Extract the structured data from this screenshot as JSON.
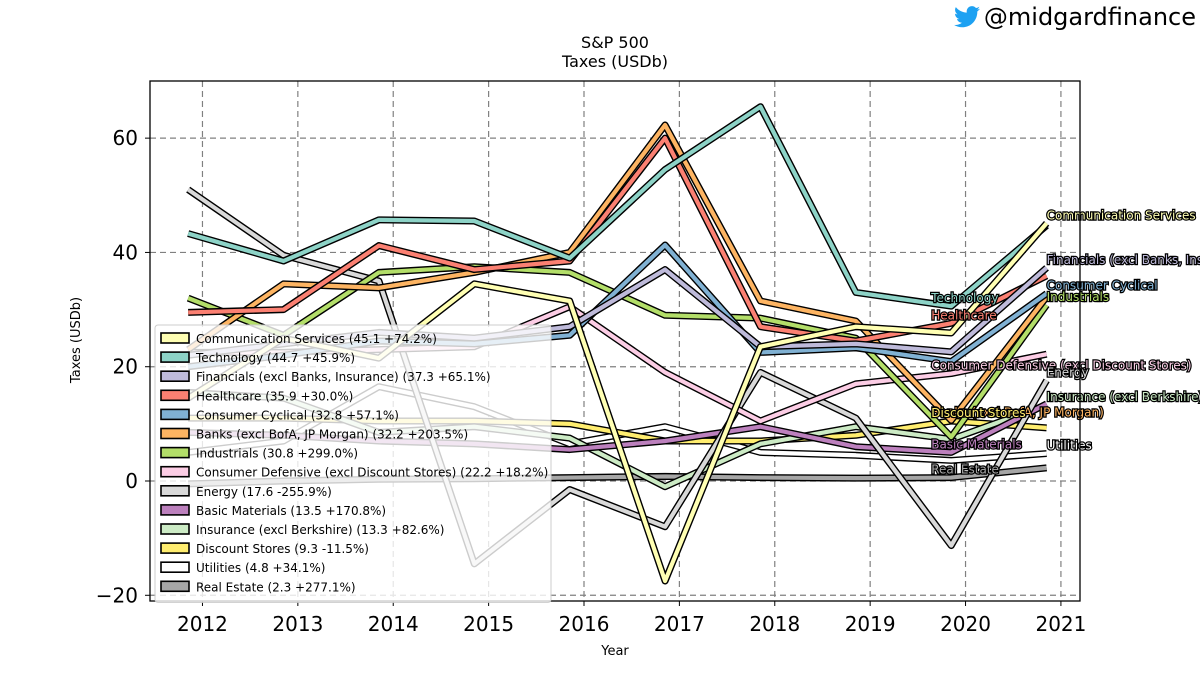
{
  "brand": {
    "handle": "@midgardfinance",
    "icon": "twitter-bird-icon",
    "icon_color": "#1DA1F2"
  },
  "chart_data": {
    "type": "line",
    "title": "S&P 500",
    "subtitle": "Taxes (USDb)",
    "xlabel": "Year",
    "ylabel": "Taxes (USDb)",
    "x": [
      2012,
      2013,
      2014,
      2015,
      2016,
      2017,
      2018,
      2019,
      2020,
      2021
    ],
    "xticks": [
      "2012",
      "2013",
      "2014",
      "2015",
      "2016",
      "2017",
      "2018",
      "2019",
      "2020",
      "2021"
    ],
    "ylim": [
      -21,
      70
    ],
    "yticks": [
      "−20",
      "0",
      "20",
      "40",
      "60"
    ],
    "ytick_values": [
      -20,
      0,
      20,
      40,
      60
    ],
    "grid": true,
    "legend_location": "lower-left",
    "series": [
      {
        "name": "Communication Services",
        "legend": "Communication Services (45.1 +74.2%)",
        "color": "#ffffb3",
        "label": "Communication Services",
        "values": [
          14.5,
          25,
          21.5,
          34.5,
          31.5,
          -17.5,
          23.5,
          27,
          25.9,
          45.1
        ]
      },
      {
        "name": "Technology",
        "legend": "Technology (44.7 +45.9%)",
        "color": "#8dd3c7",
        "label": "Technology",
        "values": [
          43.3,
          38.5,
          45.7,
          45.5,
          39,
          54.5,
          65.5,
          33,
          30.6,
          44.7
        ]
      },
      {
        "name": "Financials (excl Banks, Insurance)",
        "legend": "Financials (excl Banks, Insurance) (37.3 +65.1%)",
        "color": "#bebada",
        "label": "Financials (excl Banks, Insurance)",
        "values": [
          22,
          24,
          26,
          25,
          27,
          37,
          23.5,
          24,
          22.6,
          37.3
        ]
      },
      {
        "name": "Healthcare",
        "legend": "Healthcare (35.9 +30.0%)",
        "color": "#fb8072",
        "label": "Healthcare",
        "values": [
          29.5,
          30,
          41.2,
          37,
          38.5,
          60,
          27,
          24.5,
          27.6,
          35.9
        ]
      },
      {
        "name": "Consumer Cyclical",
        "legend": "Consumer Cyclical (32.8 +57.1%)",
        "color": "#80b1d3",
        "label": "Consumer Cyclical",
        "values": [
          20,
          22,
          24.5,
          24,
          25.5,
          41.3,
          22.5,
          23.3,
          20.9,
          32.8
        ]
      },
      {
        "name": "Banks (excl BofA, JP Morgan)",
        "legend": "Banks (excl BofA, JP Morgan) (32.2 +203.5%)",
        "color": "#fdb462",
        "label": "Banks (excl BofA, JP Morgan)",
        "values": [
          23,
          34.5,
          33.8,
          36.5,
          40,
          62.3,
          31.5,
          28,
          10.6,
          32.2
        ]
      },
      {
        "name": "Industrials",
        "legend": "Industrials (30.8 +299.0%)",
        "color": "#b3de69",
        "label": "Industrials",
        "values": [
          32,
          25.5,
          36.5,
          37.5,
          36.5,
          29,
          28.5,
          25,
          7.7,
          30.8
        ]
      },
      {
        "name": "Consumer Defensive (excl Discount Stores)",
        "legend": "Consumer Defensive (excl Discount Stores) (22.2 +18.2%)",
        "color": "#fccde5",
        "label": "Consumer Defensive (excl Discount Stores)",
        "values": [
          22.5,
          22.5,
          23,
          23.5,
          30.5,
          19,
          10.5,
          17,
          18.8,
          22.2
        ]
      },
      {
        "name": "Energy",
        "legend": "Energy (17.6 -255.9%)",
        "color": "#d9d9d9",
        "label": "Energy",
        "values": [
          51,
          39.5,
          35,
          -14.5,
          -1.5,
          -8,
          19,
          11,
          -11.3,
          17.6
        ]
      },
      {
        "name": "Basic Materials",
        "legend": "Basic Materials (13.5 +170.8%)",
        "color": "#bc80bd",
        "label": "Basic Materials",
        "values": [
          8.5,
          8,
          7,
          6.5,
          5.5,
          7,
          9.5,
          6,
          5.0,
          13.5
        ]
      },
      {
        "name": "Insurance (excl Berkshire)",
        "legend": "Insurance (excl Berkshire) (13.3 +82.6%)",
        "color": "#ccebc5",
        "label": "Insurance (excl Berkshire)",
        "values": [
          15.5,
          14.5,
          8.5,
          9.5,
          7.5,
          -1,
          6.5,
          9.5,
          7.3,
          13.3
        ]
      },
      {
        "name": "Discount Stores",
        "legend": "Discount Stores (9.3 -11.5%)",
        "color": "#ffed6f",
        "label": "Discount Stores",
        "values": [
          11,
          11,
          10.5,
          10.5,
          10,
          7,
          7,
          8,
          10.5,
          9.3
        ]
      },
      {
        "name": "Utilities",
        "legend": "Utilities (4.8 +34.1%)",
        "color": "#ffffff",
        "label": "Utilities",
        "values": [
          5,
          7,
          16.5,
          13,
          6.5,
          9.5,
          5,
          4.5,
          3.6,
          4.8
        ]
      },
      {
        "name": "Real Estate",
        "legend": "Real Estate (2.3 +277.1%)",
        "color": "#a6a6a6",
        "label": "Real Estate",
        "values": [
          -0.5,
          0,
          0.3,
          0.4,
          0.6,
          0.8,
          0.6,
          0.5,
          0.6,
          2.3
        ]
      }
    ],
    "end_labels": [
      {
        "text": "Technology",
        "series": "Technology",
        "year": 2020
      },
      {
        "text": "Communication Services",
        "series": "Communication Services",
        "year": 2021
      },
      {
        "text": "Financials (excl Banks, Insurance)",
        "series": "Financials (excl Banks, Insurance)",
        "year": 2021
      },
      {
        "text": "Healthcare",
        "series": "Healthcare",
        "year": 2020
      },
      {
        "text": "Consumer Cyclical",
        "series": "Consumer Cyclical",
        "year": 2021
      },
      {
        "text": "Banks (excl BofA, JP Morgan)",
        "series": "Banks (excl BofA, JP Morgan)",
        "year": 2020
      },
      {
        "text": "Industrials",
        "series": "Industrials",
        "year": 2021
      },
      {
        "text": "Consumer Defensive (excl Discount Stores)",
        "series": "Consumer Defensive (excl Discount Stores)",
        "year": 2020
      },
      {
        "text": "Energy",
        "series": "Energy",
        "year": 2021
      },
      {
        "text": "Basic Materials",
        "series": "Basic Materials",
        "year": 2020
      },
      {
        "text": "Insurance (excl Berkshire)",
        "series": "Insurance (excl Berkshire)",
        "year": 2021
      },
      {
        "text": "Discount Stores",
        "series": "Discount Stores",
        "year": 2020
      },
      {
        "text": "Utilities",
        "series": "Utilities",
        "year": 2021
      },
      {
        "text": "Real Estate",
        "series": "Real Estate",
        "year": 2020
      }
    ]
  }
}
